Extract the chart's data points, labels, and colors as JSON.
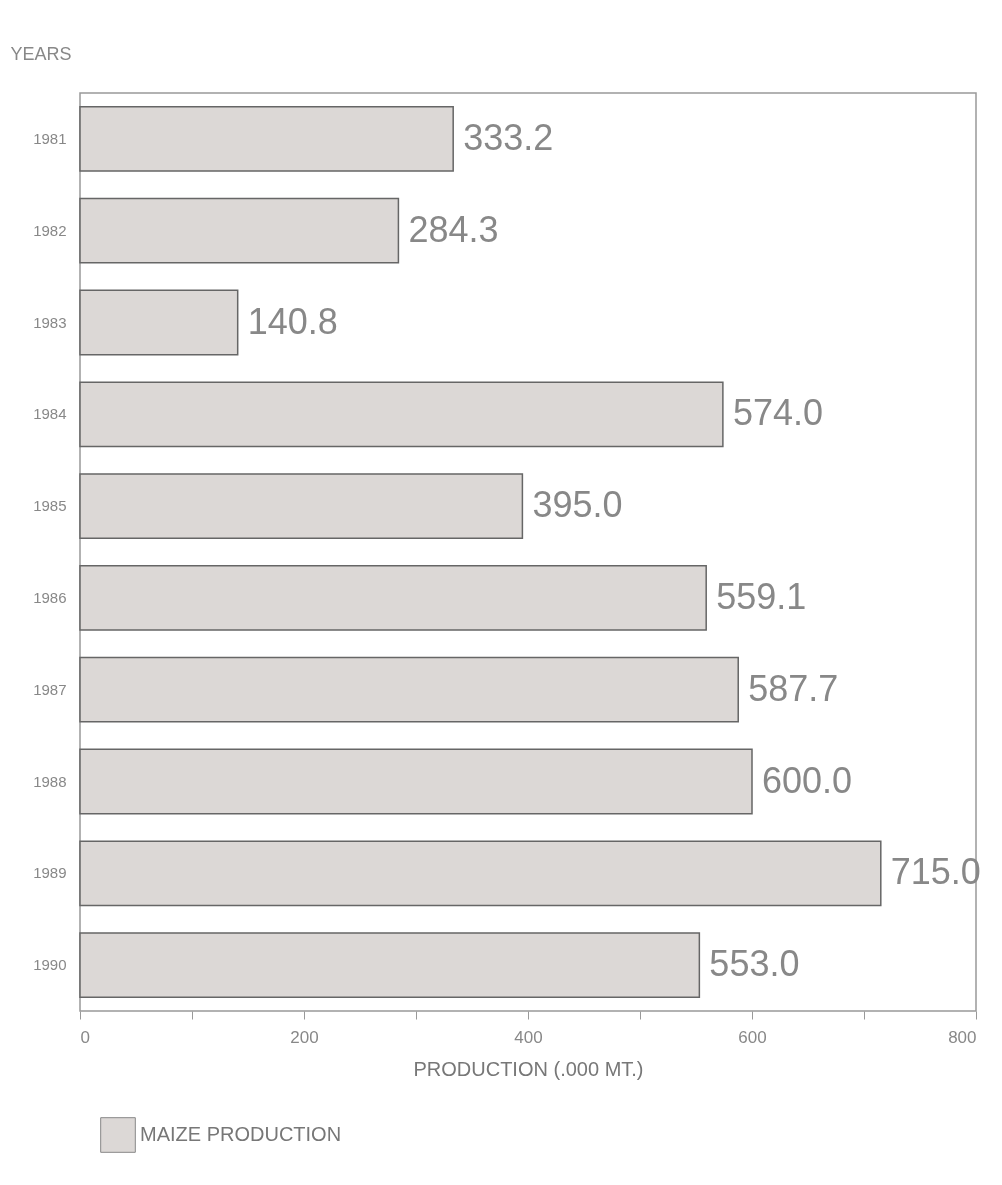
{
  "chart_data": {
    "type": "bar",
    "orientation": "horizontal",
    "ylabel": "YEARS",
    "xlabel": "PRODUCTION (.000 MT.)",
    "categories": [
      "1981",
      "1982",
      "1983",
      "1984",
      "1985",
      "1986",
      "1987",
      "1988",
      "1989",
      "1990"
    ],
    "series": [
      {
        "name": "MAIZE PRODUCTION",
        "color": "#dcd8d6",
        "values": [
          333.2,
          284.3,
          140.8,
          574.0,
          395.0,
          559.1,
          587.7,
          600.0,
          715.0,
          553.0
        ]
      }
    ],
    "value_labels": [
      "333.2",
      "284.3",
      "140.8",
      "574.0",
      "395.0",
      "559.1",
      "587.7",
      "600.0",
      "715.0",
      "553.0"
    ],
    "xlim": [
      0,
      800
    ],
    "xticks": [
      0,
      {
        "value": 100,
        "label": null
      },
      200,
      {
        "value": 300,
        "label": null
      },
      400,
      {
        "value": 500,
        "label": null
      },
      600,
      {
        "value": 700,
        "label": null
      },
      800
    ],
    "grid": false,
    "legend": "bottom"
  }
}
